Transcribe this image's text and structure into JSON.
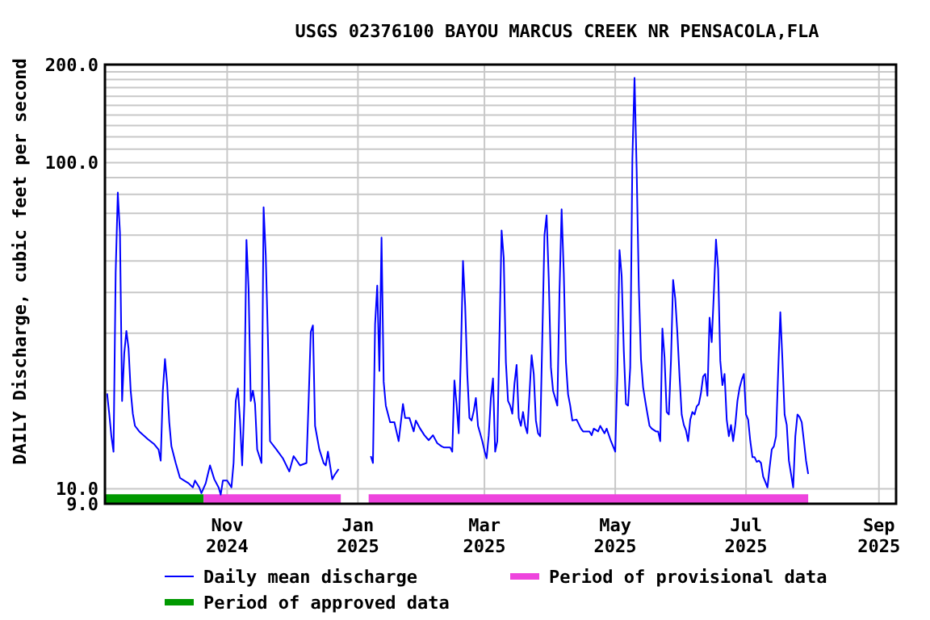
{
  "chart_data": {
    "type": "line",
    "title": "USGS 02376100 BAYOU MARCUS CREEK NR PENSACOLA,FLA",
    "ylabel": "DAILY Discharge, cubic feet per second",
    "log": "y",
    "grid": true,
    "legend": "bottom",
    "xlim": [
      "2024-09-05",
      "2025-09-09"
    ],
    "xticks": [
      {
        "value": "2024-11-01",
        "label": "Nov\n2024"
      },
      {
        "value": "2025-01-01",
        "label": "Jan\n2025"
      },
      {
        "value": "2025-03-01",
        "label": "Mar\n2025"
      },
      {
        "value": "2025-05-01",
        "label": "May\n2025"
      },
      {
        "value": "2025-07-01",
        "label": "Jul\n2025"
      },
      {
        "value": "2025-09-01",
        "label": "Sep\n2025"
      }
    ],
    "ylim": [
      9,
      200
    ],
    "yticks": [
      {
        "value": 9,
        "label": "9.0"
      },
      {
        "value": 10,
        "label": "10.0"
      },
      {
        "value": 20,
        "label": null
      },
      {
        "value": 30,
        "label": null
      },
      {
        "value": 40,
        "label": null
      },
      {
        "value": 50,
        "label": null
      },
      {
        "value": 60,
        "label": null
      },
      {
        "value": 70,
        "label": null
      },
      {
        "value": 80,
        "label": null
      },
      {
        "value": 90,
        "label": null
      },
      {
        "value": 100,
        "label": "100.0"
      },
      {
        "value": 110,
        "label": null
      },
      {
        "value": 120,
        "label": null
      },
      {
        "value": 130,
        "label": null
      },
      {
        "value": 140,
        "label": null
      },
      {
        "value": 150,
        "label": null
      },
      {
        "value": 160,
        "label": null
      },
      {
        "value": 170,
        "label": null
      },
      {
        "value": 180,
        "label": null
      },
      {
        "value": 190,
        "label": null
      },
      {
        "value": 200,
        "label": "200.0"
      }
    ],
    "series": [
      {
        "name": "Period of approved data",
        "color": "#009900",
        "x": [
          "2024-09-05",
          "2024-10-21"
        ],
        "values": [
          9.3,
          9.3
        ]
      },
      {
        "name": "Period of provisional data",
        "color": "#ee44dd",
        "x": [
          "2024-10-21",
          "2024-12-24",
          "2024-12-30",
          "2025-01-06",
          "2025-07-30"
        ],
        "values": [
          9.3,
          9.3,
          null,
          9.3,
          9.3
        ]
      },
      {
        "name": "Daily mean discharge",
        "color": "#0000ff",
        "x": [
          "2024-09-06",
          "2024-09-07",
          "2024-09-08",
          "2024-09-09",
          "2024-09-10",
          "2024-09-11",
          "2024-09-12",
          "2024-09-13",
          "2024-09-14",
          "2024-09-15",
          "2024-09-16",
          "2024-09-17",
          "2024-09-18",
          "2024-09-19",
          "2024-09-21",
          "2024-09-23",
          "2024-09-25",
          "2024-09-28",
          "2024-09-30",
          "2024-10-01",
          "2024-10-02",
          "2024-10-03",
          "2024-10-04",
          "2024-10-05",
          "2024-10-06",
          "2024-10-08",
          "2024-10-10",
          "2024-10-12",
          "2024-10-14",
          "2024-10-16",
          "2024-10-17",
          "2024-10-19",
          "2024-10-20",
          "2024-10-22",
          "2024-10-24",
          "2024-10-26",
          "2024-10-28",
          "2024-10-29",
          "2024-10-30",
          "2024-11-01",
          "2024-11-03",
          "2024-11-04",
          "2024-11-05",
          "2024-11-06",
          "2024-11-07",
          "2024-11-08",
          "2024-11-09",
          "2024-11-10",
          "2024-11-11",
          "2024-11-12",
          "2024-11-13",
          "2024-11-14",
          "2024-11-15",
          "2024-11-17",
          "2024-11-18",
          "2024-11-19",
          "2024-11-20",
          "2024-11-21",
          "2024-11-24",
          "2024-11-27",
          "2024-11-30",
          "2024-12-02",
          "2024-12-05",
          "2024-12-08",
          "2024-12-09",
          "2024-12-10",
          "2024-12-11",
          "2024-12-12",
          "2024-12-14",
          "2024-12-16",
          "2024-12-17",
          "2024-12-18",
          "2024-12-20",
          "2024-12-21",
          "2024-12-23",
          "2024-12-30",
          "2025-01-07",
          "2025-01-08",
          "2025-01-09",
          "2025-01-10",
          "2025-01-11",
          "2025-01-12",
          "2025-01-13",
          "2025-01-14",
          "2025-01-16",
          "2025-01-18",
          "2025-01-20",
          "2025-01-22",
          "2025-01-23",
          "2025-01-25",
          "2025-01-27",
          "2025-01-28",
          "2025-01-30",
          "2025-02-01",
          "2025-02-03",
          "2025-02-05",
          "2025-02-07",
          "2025-02-09",
          "2025-02-10",
          "2025-02-13",
          "2025-02-14",
          "2025-02-15",
          "2025-02-16",
          "2025-02-17",
          "2025-02-18",
          "2025-02-19",
          "2025-02-20",
          "2025-02-21",
          "2025-02-22",
          "2025-02-23",
          "2025-02-24",
          "2025-02-25",
          "2025-02-26",
          "2025-02-27",
          "2025-02-28",
          "2025-03-01",
          "2025-03-02",
          "2025-03-03",
          "2025-03-04",
          "2025-03-05",
          "2025-03-06",
          "2025-03-07",
          "2025-03-08",
          "2025-03-09",
          "2025-03-10",
          "2025-03-11",
          "2025-03-12",
          "2025-03-13",
          "2025-03-14",
          "2025-03-15",
          "2025-03-16",
          "2025-03-17",
          "2025-03-18",
          "2025-03-19",
          "2025-03-20",
          "2025-03-21",
          "2025-03-22",
          "2025-03-23",
          "2025-03-24",
          "2025-03-25",
          "2025-03-26",
          "2025-03-27",
          "2025-03-28",
          "2025-03-29",
          "2025-03-30",
          "2025-03-31",
          "2025-04-01",
          "2025-04-02",
          "2025-04-03",
          "2025-04-04",
          "2025-04-05",
          "2025-04-06",
          "2025-04-07",
          "2025-04-08",
          "2025-04-09",
          "2025-04-10",
          "2025-04-11",
          "2025-04-13",
          "2025-04-15",
          "2025-04-16",
          "2025-04-19",
          "2025-04-20",
          "2025-04-21",
          "2025-04-23",
          "2025-04-24",
          "2025-04-26",
          "2025-04-27",
          "2025-04-29",
          "2025-05-01",
          "2025-05-02",
          "2025-05-03",
          "2025-05-04",
          "2025-05-05",
          "2025-05-06",
          "2025-05-07",
          "2025-05-08",
          "2025-05-09",
          "2025-05-10",
          "2025-05-11",
          "2025-05-12",
          "2025-05-13",
          "2025-05-14",
          "2025-05-15",
          "2025-05-16",
          "2025-05-17",
          "2025-05-18",
          "2025-05-20",
          "2025-05-21",
          "2025-05-22",
          "2025-05-23",
          "2025-05-24",
          "2025-05-25",
          "2025-05-26",
          "2025-05-27",
          "2025-05-28",
          "2025-05-29",
          "2025-05-30",
          "2025-05-31",
          "2025-06-01",
          "2025-06-02",
          "2025-06-03",
          "2025-06-04",
          "2025-06-05",
          "2025-06-06",
          "2025-06-07",
          "2025-06-08",
          "2025-06-09",
          "2025-06-10",
          "2025-06-11",
          "2025-06-12",
          "2025-06-13",
          "2025-06-14",
          "2025-06-15",
          "2025-06-16",
          "2025-06-17",
          "2025-06-18",
          "2025-06-19",
          "2025-06-20",
          "2025-06-21",
          "2025-06-22",
          "2025-06-23",
          "2025-06-24",
          "2025-06-25",
          "2025-06-26",
          "2025-06-27",
          "2025-06-28",
          "2025-06-29",
          "2025-06-30",
          "2025-07-01",
          "2025-07-02",
          "2025-07-03",
          "2025-07-04",
          "2025-07-05",
          "2025-07-06",
          "2025-07-07",
          "2025-07-08",
          "2025-07-09",
          "2025-07-10",
          "2025-07-11",
          "2025-07-12",
          "2025-07-13",
          "2025-07-14",
          "2025-07-15",
          "2025-07-16",
          "2025-07-17",
          "2025-07-18",
          "2025-07-19",
          "2025-07-20",
          "2025-07-21",
          "2025-07-22",
          "2025-07-23",
          "2025-07-24",
          "2025-07-25",
          "2025-07-26",
          "2025-07-27",
          "2025-07-28",
          "2025-07-29",
          "2025-07-30"
        ],
        "values": [
          19.6,
          17,
          14.5,
          13,
          46,
          81,
          61,
          18.6,
          26,
          30.5,
          27,
          20,
          17,
          15.6,
          15,
          14.6,
          14.2,
          13.7,
          13.2,
          12.2,
          20,
          25,
          21,
          16,
          13.5,
          12,
          10.8,
          10.6,
          10.4,
          10.1,
          10.6,
          10.1,
          9.7,
          10.4,
          11.8,
          10.7,
          10.1,
          9.6,
          10.6,
          10.6,
          10.1,
          12,
          18.6,
          20.3,
          16.2,
          11.8,
          18.2,
          58,
          41,
          18.6,
          20,
          18.2,
          13.2,
          12,
          73,
          52,
          29,
          14,
          13.2,
          12.4,
          11.3,
          12.6,
          11.8,
          12,
          18.6,
          30.3,
          31.7,
          15.6,
          13.2,
          12,
          11.8,
          13,
          10.7,
          11,
          11.5,
          null,
          12.6,
          12,
          32,
          42,
          23,
          59,
          21.3,
          18,
          16,
          16,
          14,
          18.2,
          16.5,
          16.5,
          15,
          16.2,
          15.3,
          14.6,
          14.1,
          14.6,
          13.8,
          13.5,
          13.4,
          13.4,
          13,
          21.5,
          18.2,
          14.8,
          25.5,
          50,
          36.5,
          22.5,
          16.5,
          16.2,
          17.3,
          19,
          15.6,
          14.8,
          14,
          13.1,
          12.4,
          14.6,
          19,
          21.8,
          13,
          14,
          29.3,
          62,
          51,
          24.5,
          18.6,
          18,
          17,
          21,
          24,
          16.5,
          15.6,
          17.2,
          15.6,
          14.8,
          19.5,
          25.7,
          22.5,
          16.2,
          14.8,
          14.5,
          29.3,
          60,
          69,
          44,
          23.6,
          20,
          19,
          18,
          40,
          72,
          46,
          24.5,
          19.5,
          18,
          16.2,
          16.3,
          15.3,
          15,
          15,
          14.6,
          15.3,
          15,
          15.6,
          14.8,
          15.3,
          14,
          13,
          22.5,
          54,
          45,
          26.5,
          18.2,
          18,
          23.6,
          103,
          182,
          95,
          42,
          25,
          20.5,
          18.6,
          17,
          15.6,
          15.3,
          15,
          15,
          14,
          31,
          25.3,
          17.2,
          16.9,
          24.7,
          43.7,
          38.3,
          29.9,
          22.1,
          16.9,
          15.7,
          15.1,
          14,
          16.3,
          17.2,
          16.9,
          17.9,
          18.2,
          19.7,
          22.1,
          22.5,
          19.3,
          33.5,
          28.2,
          39.8,
          58.1,
          47.2,
          24.7,
          20.8,
          22.5,
          16.3,
          14.5,
          15.7,
          14,
          15.7,
          18.6,
          20.4,
          21.6,
          22.5,
          16.9,
          16.3,
          14,
          12.5,
          12.5,
          12.1,
          12.2,
          12,
          10.9,
          10.5,
          10.1,
          11.6,
          13.2,
          13.5,
          14.5,
          22.9,
          34.8,
          24.7,
          16.9,
          15.7,
          12.2,
          11.1,
          10.1,
          14.5,
          16.9,
          16.6,
          16,
          14,
          12.2,
          11.1
        ]
      }
    ]
  }
}
